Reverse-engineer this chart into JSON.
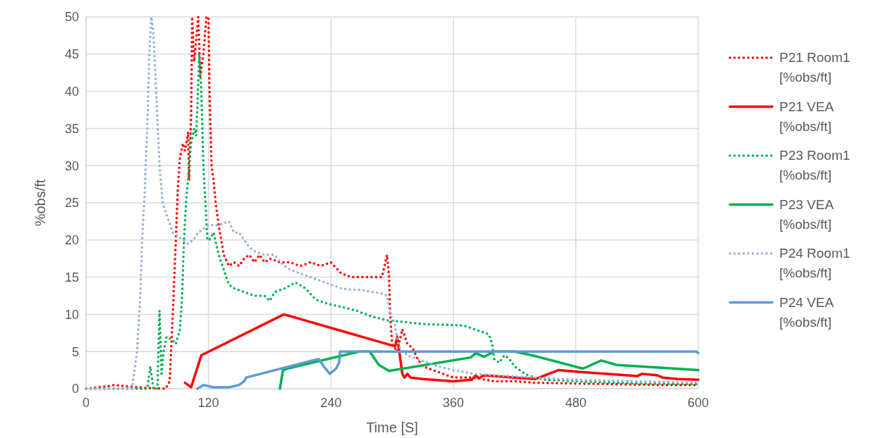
{
  "chart_data": {
    "type": "line",
    "xlabel": "Time [S]",
    "ylabel": "%obs/ft",
    "xlim": [
      0,
      600
    ],
    "ylim": [
      0,
      50
    ],
    "xticks": [
      0,
      120,
      240,
      360,
      480,
      600
    ],
    "yticks": [
      0,
      5,
      10,
      15,
      20,
      25,
      30,
      35,
      40,
      45,
      50
    ],
    "grid": true,
    "legend": "right",
    "series": [
      {
        "name": "P21 Room1 [%obs/ft]",
        "color": "#ff0000",
        "line_style": "dotted",
        "x": [
          0,
          20,
          28,
          40,
          60,
          78,
          82,
          85,
          88,
          90,
          92,
          95,
          97,
          100,
          101,
          103,
          104,
          106,
          108,
          110,
          112,
          115,
          118,
          120,
          121,
          123,
          125,
          127,
          130,
          135,
          140,
          145,
          150,
          155,
          160,
          165,
          170,
          175,
          180,
          190,
          200,
          210,
          220,
          230,
          240,
          250,
          260,
          270,
          280,
          290,
          295,
          297,
          298,
          300,
          305,
          310,
          315,
          320,
          325,
          330,
          340,
          350,
          360,
          380,
          400,
          420,
          440,
          480,
          520,
          560,
          600
        ],
        "values": [
          0,
          0.3,
          0.5,
          0.3,
          0.1,
          0,
          1,
          10,
          20,
          27,
          31,
          33,
          32,
          34.5,
          28,
          37,
          50,
          44,
          47,
          50,
          42,
          45,
          50,
          50,
          40,
          30,
          28,
          25,
          22,
          18,
          16.5,
          17,
          16.5,
          17.5,
          18,
          17,
          18,
          17,
          17.5,
          17,
          17,
          16.5,
          17,
          16.5,
          17,
          15.5,
          15,
          15,
          15,
          15,
          18,
          15,
          10,
          6,
          5,
          8,
          6,
          5.5,
          4,
          3,
          2.5,
          2,
          1.5,
          1.5,
          1,
          1,
          0.8,
          0.7,
          0.6,
          0.5,
          0.5
        ]
      },
      {
        "name": "P21 VEA [%obs/ft]",
        "color": "#ff0000",
        "line_style": "solid",
        "x": [
          97,
          103,
          113,
          194,
          303,
          305,
          307,
          310,
          312,
          315,
          318,
          330,
          360,
          378,
          382,
          385,
          390,
          400,
          420,
          440,
          450,
          463,
          480,
          540,
          545,
          560,
          565,
          580,
          600
        ],
        "values": [
          0.8,
          0.2,
          4.5,
          10,
          5.7,
          7,
          5,
          2,
          1.5,
          2,
          1.5,
          1.3,
          1,
          1.2,
          1.8,
          1.4,
          1.8,
          1.7,
          1.5,
          1.3,
          1.8,
          2.5,
          2.3,
          1.7,
          2,
          1.8,
          1.5,
          1.3,
          1.2
        ]
      },
      {
        "name": "P23 Room1 [%obs/ft]",
        "color": "#00b050",
        "line_style": "dotted",
        "x": [
          0,
          60,
          63,
          66,
          70,
          72,
          74,
          76,
          79,
          85,
          88,
          92,
          94,
          96,
          98,
          101,
          103,
          106,
          108,
          111,
          113,
          115,
          117,
          119,
          121,
          125,
          130,
          135,
          140,
          145,
          155,
          165,
          175,
          180,
          185,
          195,
          205,
          215,
          225,
          235,
          250,
          265,
          280,
          295,
          310,
          330,
          350,
          370,
          385,
          395,
          398,
          400,
          405,
          410,
          415,
          420,
          430,
          440,
          450,
          480,
          540,
          600
        ],
        "values": [
          0,
          0,
          3,
          0,
          0,
          10.5,
          2,
          5,
          7,
          6.5,
          6,
          8,
          12,
          20,
          25,
          30,
          33,
          35,
          34,
          45,
          40,
          30,
          25,
          20,
          20,
          21,
          18,
          16,
          14,
          13.5,
          13,
          12.5,
          12.5,
          11.8,
          13,
          13.5,
          14.3,
          13.5,
          12,
          11.5,
          11,
          10.5,
          9.7,
          9.2,
          9,
          8.7,
          8.6,
          8.5,
          7.8,
          7.3,
          6,
          4,
          3.5,
          4.5,
          4,
          3,
          2,
          1.5,
          1.2,
          1,
          0.7,
          0.6
        ]
      },
      {
        "name": "P23 VEA [%obs/ft]",
        "color": "#00b050",
        "line_style": "solid",
        "x": [
          190,
          193,
          200,
          268,
          278,
          287,
          297,
          377,
          382,
          390,
          400,
          420,
          440,
          487,
          505,
          520,
          600
        ],
        "values": [
          0,
          2.5,
          2.8,
          5,
          5,
          3.2,
          2.4,
          4.2,
          4.8,
          4.3,
          5,
          5,
          4.4,
          2.7,
          3.8,
          3.2,
          2.5
        ]
      },
      {
        "name": "P24 Room1 [%obs/ft]",
        "color": "#95b3d7",
        "line_style": "dotted",
        "x": [
          0,
          45,
          50,
          53,
          55,
          57,
          60,
          62,
          64,
          66,
          68,
          70,
          72,
          75,
          80,
          85,
          90,
          95,
          100,
          105,
          110,
          120,
          130,
          140,
          145,
          150,
          155,
          160,
          165,
          175,
          185,
          190,
          200,
          210,
          220,
          230,
          240,
          250,
          260,
          270,
          280,
          290,
          295,
          298,
          302,
          306,
          310,
          315,
          325,
          335,
          345,
          360,
          380,
          400,
          440,
          480,
          540,
          600
        ],
        "values": [
          0,
          0,
          5,
          12,
          20,
          25,
          35,
          45,
          50,
          48,
          42,
          36,
          30,
          25,
          23,
          21,
          20.5,
          20,
          19.5,
          20,
          21,
          22,
          22,
          22.5,
          21,
          21,
          20,
          19,
          18.5,
          18,
          18,
          17,
          16,
          15.5,
          15,
          14.5,
          14,
          13.5,
          13.3,
          13.3,
          13,
          12.8,
          12.5,
          10,
          9,
          6,
          5,
          4.5,
          4,
          3.5,
          3,
          2.5,
          2,
          1.8,
          1.5,
          1.2,
          1,
          0.8
        ]
      },
      {
        "name": "P24 VEA [%obs/ft]",
        "color": "#5b9bd5",
        "line_style": "solid",
        "x": [
          109,
          115,
          125,
          140,
          150,
          155,
          157,
          228,
          233,
          239,
          245,
          248,
          249,
          598,
          600
        ],
        "values": [
          0,
          0.5,
          0.2,
          0.2,
          0.5,
          1,
          1.5,
          4,
          3,
          2,
          2.7,
          3.5,
          5,
          5,
          4.8
        ]
      }
    ]
  }
}
